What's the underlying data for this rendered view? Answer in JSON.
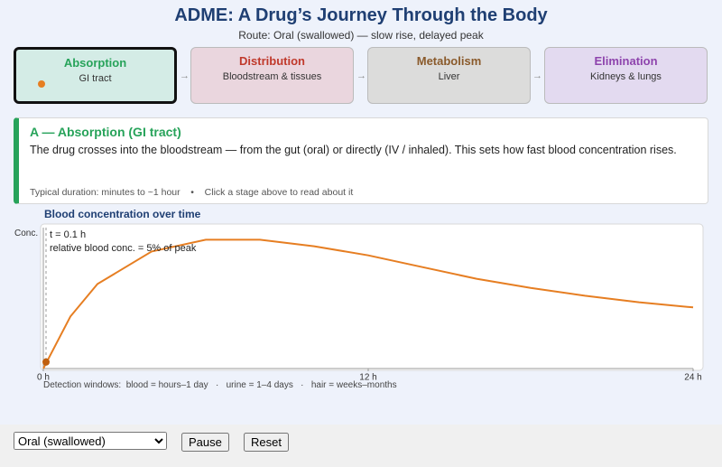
{
  "header": {
    "title": "ADME: A Drug’s Journey Through the Body",
    "subtitle": "Route: Oral (swallowed) — slow rise, delayed peak"
  },
  "stages": [
    {
      "name": "Absorption",
      "place": "GI tract",
      "color": "#27a35a",
      "fill": "#d4ece6"
    },
    {
      "name": "Distribution",
      "place": "Bloodstream & tissues",
      "color": "#c0392b",
      "fill": "#ead6de"
    },
    {
      "name": "Metabolism",
      "place": "Liver",
      "color": "#8a5a2b",
      "fill": "#dcdcdb"
    },
    {
      "name": "Elimination",
      "place": "Kidneys & lungs",
      "color": "#8e44ad",
      "fill": "#e3daf0"
    }
  ],
  "detail": {
    "heading": "A — Absorption  (GI tract)",
    "text": "The drug crosses into the bloodstream — from the gut (oral) or directly (IV / inhaled). This sets how fast blood concentration rises.",
    "footer": "Typical duration: minutes to ~1 hour    •    Click a stage above to read about it"
  },
  "chart": {
    "title": "Blood concentration over time",
    "y_label": "Conc.",
    "color": "#e67e22",
    "xlim": [
      0,
      24
    ],
    "ylim": [
      0,
      100
    ],
    "xticks": [
      {
        "value": 0,
        "label": "0 h"
      },
      {
        "value": 12,
        "label": "12 h"
      },
      {
        "value": 24,
        "label": "24 h"
      }
    ],
    "x": [
      0,
      1,
      2,
      4,
      6,
      8,
      10,
      12,
      14,
      16,
      18,
      20,
      22,
      24
    ],
    "values": [
      0,
      40,
      65,
      90,
      99,
      99,
      94,
      87,
      78,
      69,
      62,
      56,
      51,
      47
    ],
    "cursor": {
      "x": 0.1,
      "y": 5,
      "x_label": "t = 0.1 h",
      "y_label": "relative blood conc. = 5% of peak"
    },
    "note": "Detection windows:  blood = hours–1 day   ·   urine = 1–4 days   ·   hair = weeks–months"
  },
  "controls": {
    "route": "Oral (swallowed)",
    "pause": "Pause",
    "reset": "Reset"
  }
}
